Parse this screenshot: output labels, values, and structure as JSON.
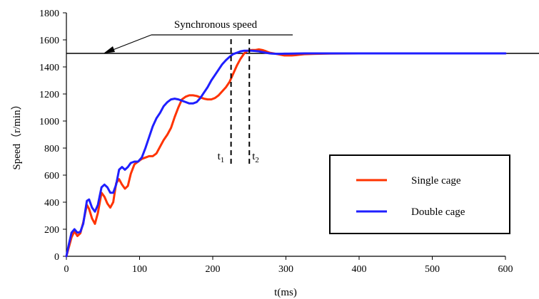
{
  "chart_data": {
    "type": "line",
    "title": "",
    "xlabel": "t(ms)",
    "ylabel": "Speed（r/min）",
    "xlim": [
      0,
      600
    ],
    "ylim": [
      0,
      1800
    ],
    "x_ticks": [
      0,
      100,
      200,
      300,
      400,
      500,
      600
    ],
    "y_ticks": [
      0,
      200,
      400,
      600,
      800,
      1000,
      1200,
      1400,
      1600,
      1800
    ],
    "grid": false,
    "legend_position": "bottom-right",
    "series": [
      {
        "name": "Single cage",
        "color": "#ff3300",
        "x": [
          0,
          3,
          7,
          11,
          15,
          19,
          23,
          28,
          31,
          35,
          39,
          43,
          48,
          52,
          56,
          60,
          64,
          68,
          72,
          76,
          80,
          84,
          88,
          93,
          98,
          103,
          108,
          113,
          118,
          123,
          128,
          133,
          138,
          143,
          148,
          153,
          158,
          163,
          168,
          173,
          178,
          183,
          188,
          193,
          198,
          203,
          208,
          213,
          218,
          223,
          228,
          233,
          238,
          243,
          248,
          253,
          258,
          263,
          268,
          273,
          278,
          283,
          288,
          293,
          298,
          303,
          308,
          313,
          318,
          325,
          340,
          360,
          400,
          500,
          600
        ],
        "values": [
          0,
          60,
          140,
          185,
          150,
          170,
          250,
          380,
          350,
          280,
          240,
          320,
          470,
          440,
          390,
          360,
          400,
          540,
          570,
          530,
          500,
          520,
          610,
          680,
          700,
          720,
          730,
          740,
          740,
          760,
          810,
          860,
          900,
          950,
          1030,
          1100,
          1160,
          1180,
          1190,
          1190,
          1185,
          1175,
          1165,
          1160,
          1160,
          1170,
          1190,
          1220,
          1250,
          1290,
          1350,
          1410,
          1460,
          1500,
          1520,
          1525,
          1525,
          1530,
          1525,
          1515,
          1505,
          1500,
          1495,
          1490,
          1485,
          1485,
          1485,
          1487,
          1490,
          1494,
          1497,
          1499,
          1500,
          1500,
          1500
        ]
      },
      {
        "name": "Double cage",
        "color": "#1f1fff",
        "x": [
          0,
          3,
          7,
          11,
          15,
          19,
          23,
          28,
          31,
          35,
          39,
          43,
          48,
          52,
          56,
          60,
          64,
          68,
          72,
          76,
          80,
          84,
          88,
          93,
          98,
          103,
          108,
          113,
          118,
          123,
          128,
          133,
          138,
          143,
          148,
          153,
          158,
          163,
          168,
          173,
          178,
          183,
          188,
          193,
          198,
          203,
          208,
          213,
          218,
          223,
          228,
          233,
          238,
          243,
          248,
          253,
          258,
          263,
          268,
          273,
          278,
          283,
          288,
          293,
          298,
          303,
          310,
          325,
          350,
          400,
          500,
          600
        ],
        "values": [
          0,
          80,
          175,
          200,
          175,
          180,
          240,
          410,
          420,
          360,
          330,
          380,
          510,
          530,
          510,
          470,
          470,
          530,
          640,
          660,
          640,
          660,
          690,
          700,
          700,
          730,
          800,
          880,
          960,
          1020,
          1060,
          1110,
          1140,
          1160,
          1165,
          1160,
          1150,
          1140,
          1130,
          1130,
          1140,
          1170,
          1210,
          1250,
          1300,
          1340,
          1380,
          1420,
          1450,
          1475,
          1495,
          1505,
          1515,
          1520,
          1520,
          1520,
          1518,
          1515,
          1510,
          1505,
          1500,
          1498,
          1497,
          1497,
          1498,
          1498,
          1499,
          1500,
          1500,
          1500,
          1500,
          1500
        ]
      }
    ],
    "reference_lines": [
      {
        "type": "horizontal",
        "value": 1500,
        "label": "Synchronous speed"
      }
    ],
    "markers": [
      {
        "label": "t",
        "subscript": "1",
        "x": 225
      },
      {
        "label": "t",
        "subscript": "2",
        "x": 250
      }
    ]
  }
}
